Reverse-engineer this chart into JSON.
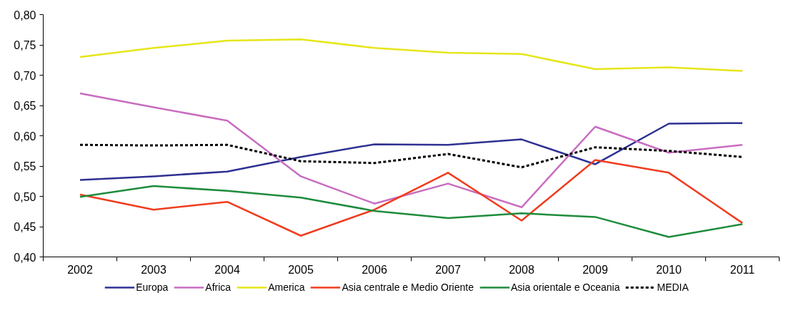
{
  "chart_data": {
    "type": "line",
    "categories": [
      "2002",
      "2003",
      "2004",
      "2005",
      "2006",
      "2007",
      "2008",
      "2009",
      "2010",
      "2011"
    ],
    "ylim": [
      0.4,
      0.8
    ],
    "yticks": [
      {
        "value": 0.4,
        "label": "0,40"
      },
      {
        "value": 0.45,
        "label": "0,45"
      },
      {
        "value": 0.5,
        "label": "0,50"
      },
      {
        "value": 0.55,
        "label": "0,55"
      },
      {
        "value": 0.6,
        "label": "0,60"
      },
      {
        "value": 0.65,
        "label": "0,65"
      },
      {
        "value": 0.7,
        "label": "0,70"
      },
      {
        "value": 0.75,
        "label": "0,75"
      },
      {
        "value": 0.8,
        "label": "0,80"
      }
    ],
    "grid": false,
    "legend": "bottom",
    "marker": "none",
    "series": [
      {
        "name": "Europa",
        "color": "#2e3192",
        "line_style": "solid",
        "values": [
          0.527,
          0.533,
          0.541,
          0.565,
          0.586,
          0.585,
          0.594,
          0.553,
          0.62,
          0.621
        ]
      },
      {
        "name": "Africa",
        "color": "#c86dc0",
        "line_style": "solid",
        "values": [
          0.67,
          0.647,
          0.625,
          0.533,
          0.488,
          0.521,
          0.482,
          0.615,
          0.572,
          0.585
        ]
      },
      {
        "name": "America",
        "color": "#e6e619",
        "line_style": "solid",
        "values": [
          0.73,
          0.745,
          0.757,
          0.759,
          0.745,
          0.737,
          0.735,
          0.71,
          0.713,
          0.707
        ]
      },
      {
        "name": "Asia centrale e Medio Oriente",
        "color": "#f03c1e",
        "line_style": "solid",
        "values": [
          0.503,
          0.478,
          0.491,
          0.435,
          0.478,
          0.539,
          0.46,
          0.56,
          0.539,
          0.456
        ]
      },
      {
        "name": "Asia orientale e Oceania",
        "color": "#1e8c3c",
        "line_style": "solid",
        "values": [
          0.499,
          0.517,
          0.509,
          0.498,
          0.476,
          0.464,
          0.472,
          0.466,
          0.433,
          0.454
        ]
      },
      {
        "name": "MEDIA",
        "color": "#000000",
        "line_style": "dashed",
        "values": [
          0.585,
          0.584,
          0.585,
          0.558,
          0.555,
          0.57,
          0.548,
          0.581,
          0.575,
          0.565
        ]
      }
    ]
  }
}
